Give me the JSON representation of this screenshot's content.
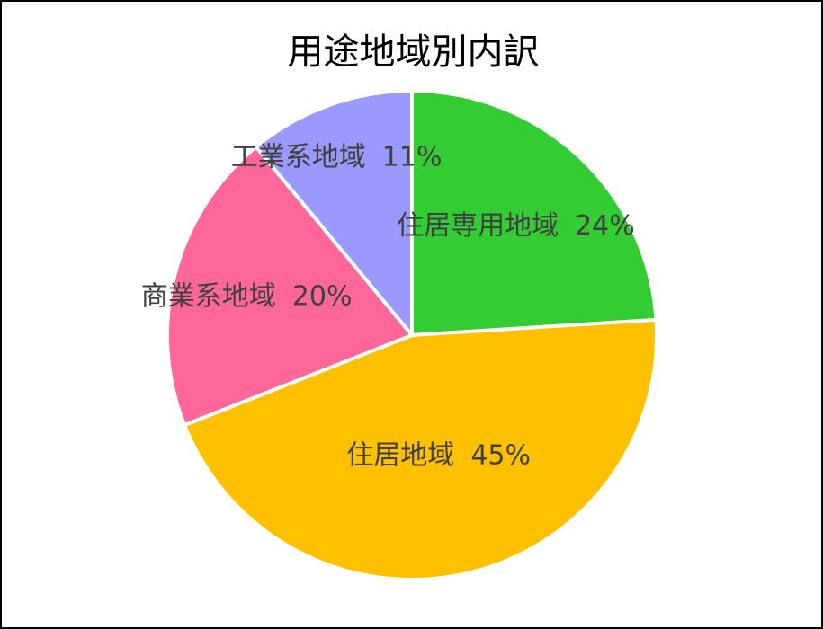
{
  "chart_data": {
    "type": "pie",
    "title": "用途地域別内訳",
    "slices": [
      {
        "label": "住居専用地域",
        "percent_label": "24%",
        "value": 24,
        "color": "#33cc33"
      },
      {
        "label": "住居地域",
        "percent_label": "45%",
        "value": 45,
        "color": "#ffc000"
      },
      {
        "label": "商業系地域",
        "percent_label": "20%",
        "value": 20,
        "color": "#ff6699"
      },
      {
        "label": "工業系地域",
        "percent_label": "11%",
        "value": 11,
        "color": "#9999ff"
      }
    ],
    "start": "top",
    "direction": "clockwise",
    "legend": "none",
    "data_labels": "inside"
  }
}
